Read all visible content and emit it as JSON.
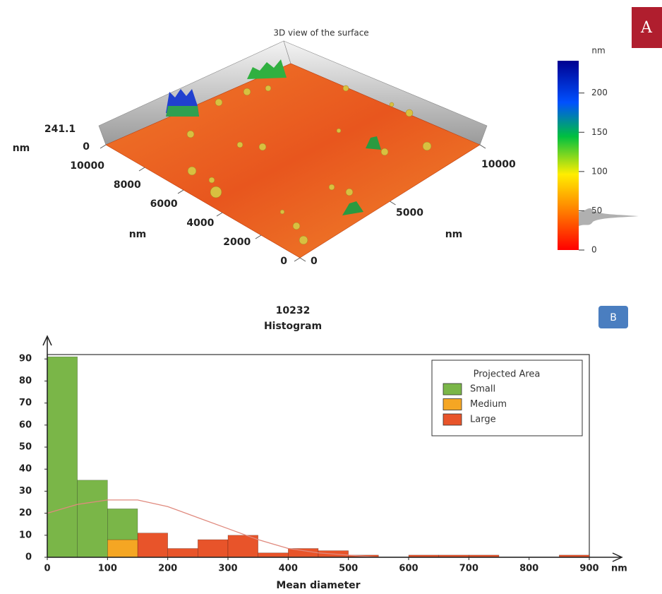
{
  "chart_data": [
    {
      "type": "surface3d",
      "title": "3D view of the surface",
      "panel_label": "A",
      "zlim": [
        0,
        241.1
      ],
      "z_unit": "nm",
      "yticks": [
        0,
        2000,
        4000,
        6000,
        8000,
        10000
      ],
      "y_unit": "nm",
      "xticks": [
        0,
        5000,
        10000
      ],
      "x_unit": "nm",
      "colorbar_ticks": [
        0,
        50,
        100,
        150,
        200
      ],
      "colorbar_unit": "nm"
    },
    {
      "type": "histogram",
      "subtitle": "10232",
      "title": "Histogram",
      "panel_label": "B",
      "bins": [
        0,
        50,
        100,
        150,
        200,
        250,
        300,
        350,
        400,
        450,
        500,
        550,
        600,
        650,
        700,
        750,
        800,
        850,
        900
      ],
      "legend_title": "Projected Area",
      "series": [
        {
          "name": "Small",
          "color": "#7ab648",
          "values": [
            91,
            35,
            14,
            0,
            0,
            0,
            0,
            0,
            0,
            0,
            0,
            0,
            0,
            0,
            0,
            0,
            0,
            0
          ]
        },
        {
          "name": "Medium",
          "color": "#f5a623",
          "values": [
            0,
            0,
            8,
            0,
            0,
            0,
            0,
            0,
            0,
            0,
            0,
            0,
            0,
            0,
            0,
            0,
            0,
            0
          ]
        },
        {
          "name": "Large",
          "color": "#e8542a",
          "values": [
            0,
            0,
            0,
            11,
            4,
            8,
            10,
            2,
            4,
            3,
            1,
            0,
            1,
            1,
            1,
            0,
            0,
            1
          ]
        }
      ],
      "fit": {
        "color": "#e08a7e",
        "x": [
          0,
          50,
          100,
          150,
          200,
          250,
          300,
          350,
          400,
          450,
          500,
          550
        ],
        "values": [
          20,
          24,
          26,
          26,
          23,
          18,
          13,
          8,
          4,
          2,
          1,
          0
        ]
      },
      "xlim": [
        0,
        900
      ],
      "ylim": [
        0,
        92
      ],
      "xticks": [
        0,
        100,
        200,
        300,
        400,
        500,
        600,
        700,
        800,
        900
      ],
      "yticks": [
        0,
        10,
        20,
        30,
        40,
        50,
        60,
        70,
        80,
        90
      ],
      "x_unit": "nm",
      "xlabel": "Mean diameter"
    }
  ]
}
